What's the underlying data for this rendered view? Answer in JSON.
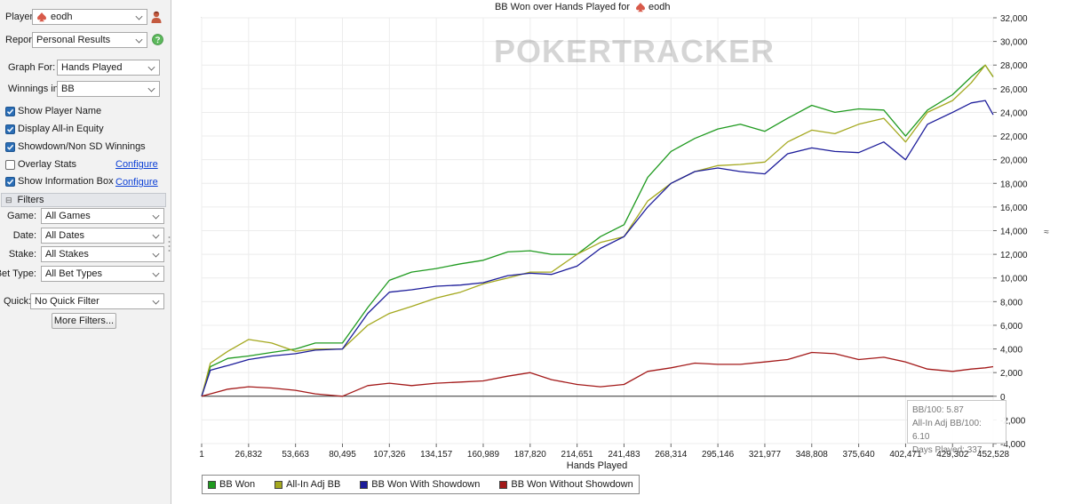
{
  "settings": {
    "player_label": "Player:",
    "player_value": "eodh",
    "report_label": "Report:",
    "report_value": "Personal Results",
    "graph_for_label": "Graph For:",
    "graph_for_value": "Hands Played",
    "winnings_label": "Winnings in:",
    "winnings_value": "BB",
    "checkboxes": [
      {
        "label": "Show Player Name",
        "checked": true
      },
      {
        "label": "Display All-in Equity",
        "checked": true
      },
      {
        "label": "Showdown/Non SD Winnings",
        "checked": true
      },
      {
        "label": "Overlay Stats",
        "checked": false,
        "link": "Configure"
      },
      {
        "label": "Show Information Box",
        "checked": true,
        "link": "Configure"
      }
    ]
  },
  "filters": {
    "header": "Filters",
    "collapse_glyph": "⊟",
    "game_label": "Game:",
    "game_value": "All Games",
    "date_label": "Date:",
    "date_value": "All Dates",
    "stake_label": "Stake:",
    "stake_value": "All Stakes",
    "bet_type_label": "Bet Type:",
    "bet_type_value": "All Bet Types",
    "quick_label": "Quick:",
    "quick_value": "No Quick Filter",
    "more_button": "More Filters..."
  },
  "icons": {
    "player": "spade-icon",
    "player_action": "person-icon",
    "report_action": "help-icon"
  },
  "chart_data": {
    "type": "line",
    "title": "BB Won over Hands Played for",
    "title_player": "eodh",
    "watermark": "POKERTRACKER",
    "xlabel": "Hands Played",
    "ylabel": "",
    "y_unit_glyph": "≈",
    "xlim": [
      1,
      452528
    ],
    "ylim": [
      -4000,
      32000
    ],
    "x_ticks": [
      "1",
      "26,832",
      "53,663",
      "80,495",
      "107,326",
      "134,157",
      "160,989",
      "187,820",
      "214,651",
      "241,483",
      "268,314",
      "295,146",
      "321,977",
      "348,808",
      "375,640",
      "402,471",
      "429,302",
      "452,528"
    ],
    "y_ticks": [
      "32,000",
      "30,000",
      "28,000",
      "26,000",
      "24,000",
      "22,000",
      "20,000",
      "18,000",
      "16,000",
      "14,000",
      "12,000",
      "10,000",
      "8,000",
      "6,000",
      "4,000",
      "2,000",
      "0",
      "-2,000",
      "-4,000"
    ],
    "grid": true,
    "legend_position": "bottom-left",
    "x": [
      1,
      5000,
      15000,
      26832,
      40000,
      53663,
      65000,
      80495,
      95000,
      107326,
      120000,
      134157,
      148000,
      160989,
      175000,
      187820,
      200000,
      214651,
      228000,
      241483,
      255000,
      268314,
      282000,
      295146,
      308000,
      321977,
      335000,
      348808,
      362000,
      375640,
      390000,
      402471,
      415000,
      429302,
      440000,
      448000,
      452528
    ],
    "series": [
      {
        "name": "BB Won",
        "color": "#1f9a1f",
        "values": [
          0,
          2500,
          3200,
          3400,
          3700,
          4000,
          4500,
          4500,
          7500,
          9800,
          10500,
          10800,
          11200,
          11500,
          12200,
          12300,
          12000,
          12000,
          13500,
          14500,
          18500,
          20700,
          21800,
          22600,
          23000,
          22400,
          23500,
          24600,
          24000,
          24300,
          24200,
          22000,
          24200,
          25500,
          27000,
          28000,
          27000
        ]
      },
      {
        "name": "All-In Adj BB",
        "color": "#a4a81e",
        "values": [
          0,
          2800,
          3800,
          4800,
          4500,
          3800,
          4000,
          4000,
          6000,
          7000,
          7600,
          8300,
          8800,
          9500,
          10000,
          10500,
          10500,
          12000,
          13000,
          13500,
          16500,
          18000,
          19000,
          19500,
          19600,
          19800,
          21500,
          22500,
          22200,
          23000,
          23500,
          21500,
          24000,
          25000,
          26500,
          28000,
          27000
        ]
      },
      {
        "name": "BB Won With Showdown",
        "color": "#1c1c9a",
        "values": [
          0,
          2200,
          2600,
          3100,
          3400,
          3600,
          3900,
          4000,
          7000,
          8800,
          9000,
          9300,
          9400,
          9600,
          10200,
          10400,
          10300,
          11000,
          12500,
          13500,
          16000,
          18000,
          19000,
          19300,
          19000,
          18800,
          20500,
          21000,
          20700,
          20600,
          21500,
          20000,
          23000,
          24000,
          24800,
          25000,
          23800
        ]
      },
      {
        "name": "BB Won Without Showdown",
        "color": "#a31919",
        "values": [
          0,
          200,
          600,
          800,
          700,
          500,
          200,
          0,
          900,
          1100,
          900,
          1100,
          1200,
          1300,
          1700,
          2000,
          1400,
          1000,
          800,
          1000,
          2100,
          2400,
          2800,
          2700,
          2700,
          2900,
          3100,
          3700,
          3600,
          3100,
          3300,
          2900,
          2300,
          2100,
          2300,
          2400,
          2500
        ]
      }
    ]
  },
  "info_box": {
    "line1": "BB/100: 5.87",
    "line2": "All-In Adj BB/100: 6.10",
    "line3": "Days Played: 337"
  }
}
